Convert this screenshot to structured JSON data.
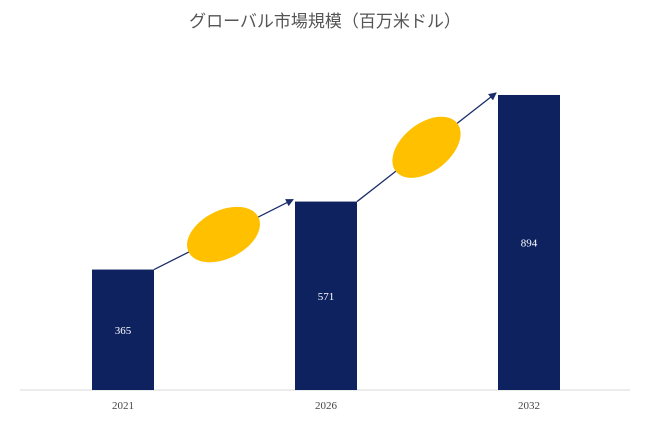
{
  "chart_data": {
    "type": "bar",
    "title": "グローバル市場規模（百万米ドル）",
    "categories": [
      "2021",
      "2026",
      "2032"
    ],
    "values": [
      365,
      571,
      894
    ],
    "ylim": [
      0,
      1000
    ],
    "grid": false,
    "legend": "none",
    "data_labels": true,
    "bar_color": "#0f2260",
    "arrow_color": "#1b2d6b",
    "ellipse_color": "#ffc000",
    "axis_color": "#d9d9d9"
  }
}
